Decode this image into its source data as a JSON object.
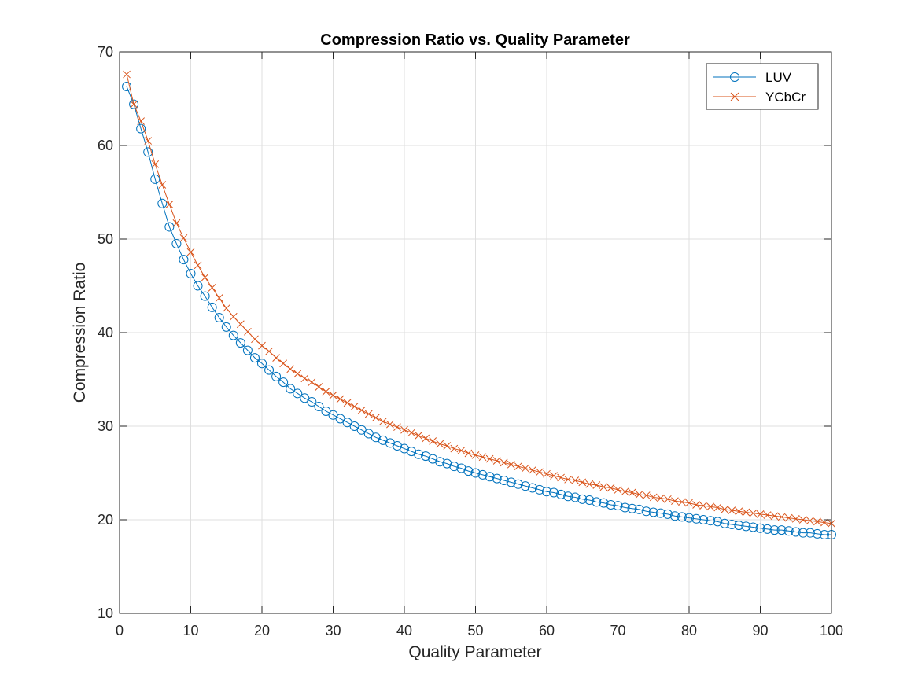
{
  "chart_data": {
    "type": "line",
    "title": "Compression Ratio vs. Quality Parameter",
    "xlabel": "Quality Parameter",
    "ylabel": "Compression Ratio",
    "xlim": [
      0,
      100
    ],
    "ylim": [
      10,
      70
    ],
    "xticks": [
      0,
      10,
      20,
      30,
      40,
      50,
      60,
      70,
      80,
      90,
      100
    ],
    "yticks": [
      10,
      20,
      30,
      40,
      50,
      60,
      70
    ],
    "grid": true,
    "legend_position": "top-right",
    "x": [
      1,
      2,
      3,
      4,
      5,
      6,
      7,
      8,
      9,
      10,
      11,
      12,
      13,
      14,
      15,
      16,
      17,
      18,
      19,
      20,
      21,
      22,
      23,
      24,
      25,
      26,
      27,
      28,
      29,
      30,
      31,
      32,
      33,
      34,
      35,
      36,
      37,
      38,
      39,
      40,
      41,
      42,
      43,
      44,
      45,
      46,
      47,
      48,
      49,
      50,
      51,
      52,
      53,
      54,
      55,
      56,
      57,
      58,
      59,
      60,
      61,
      62,
      63,
      64,
      65,
      66,
      67,
      68,
      69,
      70,
      71,
      72,
      73,
      74,
      75,
      76,
      77,
      78,
      79,
      80,
      81,
      82,
      83,
      84,
      85,
      86,
      87,
      88,
      89,
      90,
      91,
      92,
      93,
      94,
      95,
      96,
      97,
      98,
      99,
      100
    ],
    "series": [
      {
        "name": "LUV",
        "color": "#0072BD",
        "marker": "circle",
        "values": [
          66.3,
          64.4,
          61.8,
          59.3,
          56.4,
          53.8,
          51.3,
          49.5,
          47.8,
          46.3,
          45.0,
          43.9,
          42.7,
          41.6,
          40.6,
          39.7,
          38.9,
          38.1,
          37.3,
          36.7,
          36.0,
          35.3,
          34.7,
          34.0,
          33.5,
          33.0,
          32.6,
          32.1,
          31.6,
          31.2,
          30.8,
          30.4,
          30.0,
          29.6,
          29.2,
          28.8,
          28.5,
          28.2,
          27.9,
          27.6,
          27.3,
          27.0,
          26.8,
          26.5,
          26.2,
          26.0,
          25.7,
          25.5,
          25.2,
          25.0,
          24.8,
          24.6,
          24.4,
          24.2,
          24.0,
          23.8,
          23.6,
          23.4,
          23.2,
          23.0,
          22.9,
          22.7,
          22.5,
          22.4,
          22.2,
          22.1,
          21.9,
          21.8,
          21.6,
          21.5,
          21.3,
          21.2,
          21.1,
          20.9,
          20.8,
          20.7,
          20.6,
          20.4,
          20.3,
          20.2,
          20.1,
          20.0,
          19.9,
          19.8,
          19.6,
          19.5,
          19.4,
          19.3,
          19.2,
          19.1,
          19.0,
          18.9,
          18.9,
          18.8,
          18.7,
          18.6,
          18.6,
          18.5,
          18.4,
          18.4
        ]
      },
      {
        "name": "YCbCr",
        "color": "#D95319",
        "marker": "x",
        "values": [
          67.6,
          64.4,
          62.6,
          60.5,
          58.0,
          55.8,
          53.7,
          51.7,
          50.1,
          48.6,
          47.2,
          45.9,
          44.8,
          43.7,
          42.6,
          41.7,
          40.9,
          40.1,
          39.3,
          38.6,
          38.0,
          37.3,
          36.7,
          36.1,
          35.6,
          35.1,
          34.7,
          34.2,
          33.7,
          33.3,
          32.9,
          32.5,
          32.1,
          31.7,
          31.3,
          30.9,
          30.5,
          30.2,
          29.9,
          29.6,
          29.3,
          29.0,
          28.7,
          28.4,
          28.1,
          27.9,
          27.6,
          27.4,
          27.1,
          26.9,
          26.7,
          26.5,
          26.3,
          26.1,
          25.9,
          25.7,
          25.5,
          25.3,
          25.1,
          24.9,
          24.7,
          24.5,
          24.3,
          24.2,
          24.0,
          23.8,
          23.7,
          23.5,
          23.4,
          23.2,
          23.0,
          22.9,
          22.7,
          22.6,
          22.4,
          22.3,
          22.2,
          22.0,
          21.9,
          21.8,
          21.6,
          21.5,
          21.4,
          21.3,
          21.1,
          21.0,
          20.9,
          20.8,
          20.7,
          20.6,
          20.5,
          20.4,
          20.3,
          20.2,
          20.1,
          20.0,
          19.9,
          19.8,
          19.7,
          19.6
        ]
      }
    ]
  }
}
